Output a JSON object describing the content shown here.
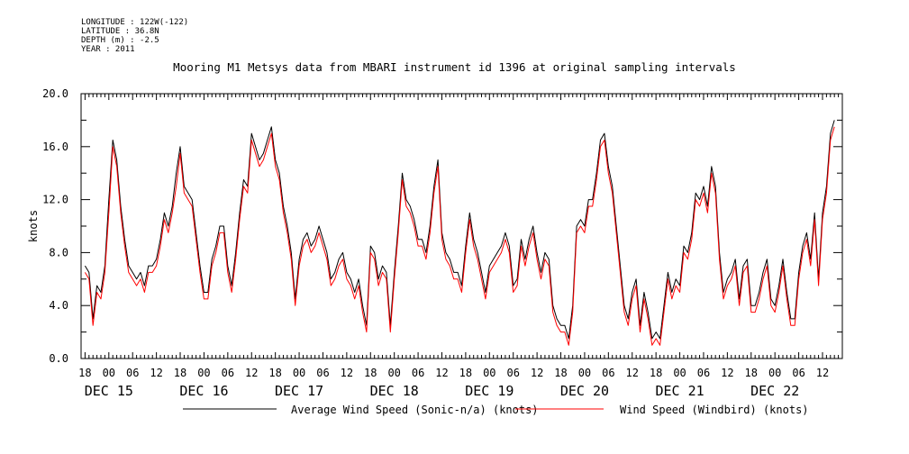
{
  "meta": {
    "longitude": "LONGITUDE : 122W(-122)",
    "latitude": "LATITUDE : 36.8N",
    "depth": "DEPTH (m) : -2.5",
    "year": "YEAR : 2011"
  },
  "chart_data": {
    "type": "line",
    "title": "Mooring M1 Metsys data from MBARI instrument id 1396 at original sampling intervals",
    "ylabel": "knots",
    "ylim": [
      0,
      20
    ],
    "yticks": [
      "0.0",
      "4.0",
      "8.0",
      "12.0",
      "16.0",
      "20.0"
    ],
    "xlim_hours": [
      -7,
      185
    ],
    "hour_tick_labels": [
      "18",
      "00",
      "06",
      "12",
      "18",
      "00",
      "06",
      "12",
      "18",
      "00",
      "06",
      "12",
      "18",
      "00",
      "06",
      "12",
      "18",
      "00",
      "06",
      "12",
      "18",
      "00",
      "06",
      "12",
      "18",
      "00",
      "06",
      "12",
      "18",
      "00",
      "06",
      "12"
    ],
    "day_labels": [
      "DEC 15",
      "DEC 16",
      "DEC 17",
      "DEC 18",
      "DEC 19",
      "DEC 20",
      "DEC 21",
      "DEC 22"
    ],
    "legend_placement": "bottom",
    "x_hours_since_dec15": [
      -6,
      -5,
      -4,
      -3,
      -2,
      -1,
      0,
      1,
      2,
      3,
      4,
      5,
      6,
      7,
      8,
      9,
      10,
      11,
      12,
      13,
      14,
      15,
      16,
      17,
      18,
      19,
      20,
      21,
      22,
      23,
      24,
      25,
      26,
      27,
      28,
      29,
      30,
      31,
      32,
      33,
      34,
      35,
      36,
      37,
      38,
      39,
      40,
      41,
      42,
      43,
      44,
      45,
      46,
      47,
      48,
      49,
      50,
      51,
      52,
      53,
      54,
      55,
      56,
      57,
      58,
      59,
      60,
      61,
      62,
      63,
      64,
      65,
      66,
      67,
      68,
      69,
      70,
      71,
      72,
      73,
      74,
      75,
      76,
      77,
      78,
      79,
      80,
      81,
      82,
      83,
      84,
      85,
      86,
      87,
      88,
      89,
      90,
      91,
      92,
      93,
      94,
      95,
      96,
      97,
      98,
      99,
      100,
      101,
      102,
      103,
      104,
      105,
      106,
      107,
      108,
      109,
      110,
      111,
      112,
      113,
      114,
      115,
      116,
      117,
      118,
      119,
      120,
      121,
      122,
      123,
      124,
      125,
      126,
      127,
      128,
      129,
      130,
      131,
      132,
      133,
      134,
      135,
      136,
      137,
      138,
      139,
      140,
      141,
      142,
      143,
      144,
      145,
      146,
      147,
      148,
      149,
      150,
      151,
      152,
      153,
      154,
      155,
      156,
      157,
      158,
      159,
      160,
      161,
      162,
      163,
      164,
      165,
      166,
      167,
      168,
      169,
      170,
      171,
      172,
      173,
      174,
      175,
      176,
      177,
      178,
      179,
      180,
      181,
      182,
      183
    ],
    "series": [
      {
        "name": "Average Wind Speed (Sonic-n/a) (knots)",
        "color": "#000000",
        "values": [
          7.0,
          6.5,
          3.0,
          5.5,
          5.0,
          7.0,
          12.0,
          16.5,
          15.0,
          11.5,
          9.0,
          7.0,
          6.5,
          6.0,
          6.5,
          5.5,
          7.0,
          7.0,
          7.5,
          9.0,
          11.0,
          10.0,
          11.5,
          14.0,
          16.0,
          13.0,
          12.5,
          12.0,
          9.5,
          7.0,
          5.0,
          5.0,
          7.5,
          8.5,
          10.0,
          10.0,
          7.0,
          5.5,
          8.0,
          11.0,
          13.5,
          13.0,
          17.0,
          16.0,
          15.0,
          15.5,
          16.5,
          17.5,
          15.0,
          14.0,
          11.5,
          10.0,
          8.0,
          4.5,
          7.5,
          9.0,
          9.5,
          8.5,
          9.0,
          10.0,
          9.0,
          8.0,
          6.0,
          6.5,
          7.5,
          8.0,
          6.5,
          6.0,
          5.0,
          6.0,
          4.0,
          2.5,
          8.5,
          8.0,
          6.0,
          7.0,
          6.5,
          2.5,
          6.5,
          10.0,
          14.0,
          12.0,
          11.5,
          10.5,
          9.0,
          9.0,
          8.0,
          10.0,
          13.0,
          15.0,
          9.5,
          8.0,
          7.5,
          6.5,
          6.5,
          5.5,
          8.5,
          11.0,
          9.0,
          8.0,
          6.5,
          5.0,
          7.0,
          7.5,
          8.0,
          8.5,
          9.5,
          8.5,
          5.5,
          6.0,
          9.0,
          7.5,
          9.0,
          10.0,
          8.0,
          6.5,
          8.0,
          7.5,
          4.0,
          3.0,
          2.5,
          2.5,
          1.5,
          4.0,
          10.0,
          10.5,
          10.0,
          12.0,
          12.0,
          14.0,
          16.5,
          17.0,
          14.5,
          13.0,
          10.0,
          7.0,
          4.0,
          3.0,
          5.0,
          6.0,
          2.5,
          5.0,
          3.5,
          1.5,
          2.0,
          1.5,
          4.0,
          6.5,
          5.0,
          6.0,
          5.5,
          8.5,
          8.0,
          9.5,
          12.5,
          12.0,
          13.0,
          11.5,
          14.5,
          13.0,
          8.0,
          5.0,
          6.0,
          6.5,
          7.5,
          4.5,
          7.0,
          7.5,
          4.0,
          4.0,
          5.0,
          6.5,
          7.5,
          4.5,
          4.0,
          5.5,
          7.5,
          5.0,
          3.0,
          3.0,
          6.5,
          8.5,
          9.5,
          7.5,
          11.0,
          6.0,
          11.0,
          13.0,
          17.0,
          18.0
        ]
      },
      {
        "name": "Wind Speed (Windbird) (knots)",
        "color": "#ff0000",
        "values": [
          6.5,
          6.0,
          2.5,
          5.0,
          4.5,
          6.5,
          11.0,
          16.0,
          14.5,
          11.0,
          8.5,
          6.5,
          6.0,
          5.5,
          6.0,
          5.0,
          6.5,
          6.5,
          7.0,
          8.5,
          10.5,
          9.5,
          11.0,
          13.0,
          15.5,
          12.5,
          12.0,
          11.5,
          9.0,
          6.5,
          4.5,
          4.5,
          7.0,
          8.0,
          9.5,
          9.5,
          6.5,
          5.0,
          7.5,
          10.5,
          13.0,
          12.5,
          16.5,
          15.5,
          14.5,
          15.0,
          16.0,
          17.0,
          14.5,
          13.5,
          11.0,
          9.5,
          7.5,
          4.0,
          7.0,
          8.5,
          9.0,
          8.0,
          8.5,
          9.5,
          8.5,
          7.5,
          5.5,
          6.0,
          7.0,
          7.5,
          6.0,
          5.5,
          4.5,
          5.5,
          3.5,
          2.0,
          8.0,
          7.5,
          5.5,
          6.5,
          6.0,
          2.0,
          6.0,
          9.5,
          13.5,
          11.5,
          11.0,
          10.0,
          8.5,
          8.5,
          7.5,
          9.5,
          12.5,
          14.5,
          9.0,
          7.5,
          7.0,
          6.0,
          6.0,
          5.0,
          8.0,
          10.5,
          8.5,
          7.5,
          6.0,
          4.5,
          6.5,
          7.0,
          7.5,
          8.0,
          9.0,
          8.0,
          5.0,
          5.5,
          8.5,
          7.0,
          8.5,
          9.5,
          7.5,
          6.0,
          7.5,
          7.0,
          3.5,
          2.5,
          2.0,
          2.0,
          1.0,
          3.5,
          9.5,
          10.0,
          9.5,
          11.5,
          11.5,
          13.5,
          16.0,
          16.5,
          14.0,
          12.5,
          9.5,
          6.5,
          3.5,
          2.5,
          4.5,
          5.5,
          2.0,
          4.5,
          3.0,
          1.0,
          1.5,
          1.0,
          3.5,
          6.0,
          4.5,
          5.5,
          5.0,
          8.0,
          7.5,
          9.0,
          12.0,
          11.5,
          12.5,
          11.0,
          14.0,
          12.5,
          7.5,
          4.5,
          5.5,
          6.0,
          7.0,
          4.0,
          6.5,
          7.0,
          3.5,
          3.5,
          4.5,
          6.0,
          7.0,
          4.0,
          3.5,
          5.0,
          7.0,
          4.5,
          2.5,
          2.5,
          6.0,
          8.0,
          9.0,
          7.0,
          10.5,
          5.5,
          10.5,
          12.5,
          16.5,
          17.5
        ]
      }
    ]
  }
}
